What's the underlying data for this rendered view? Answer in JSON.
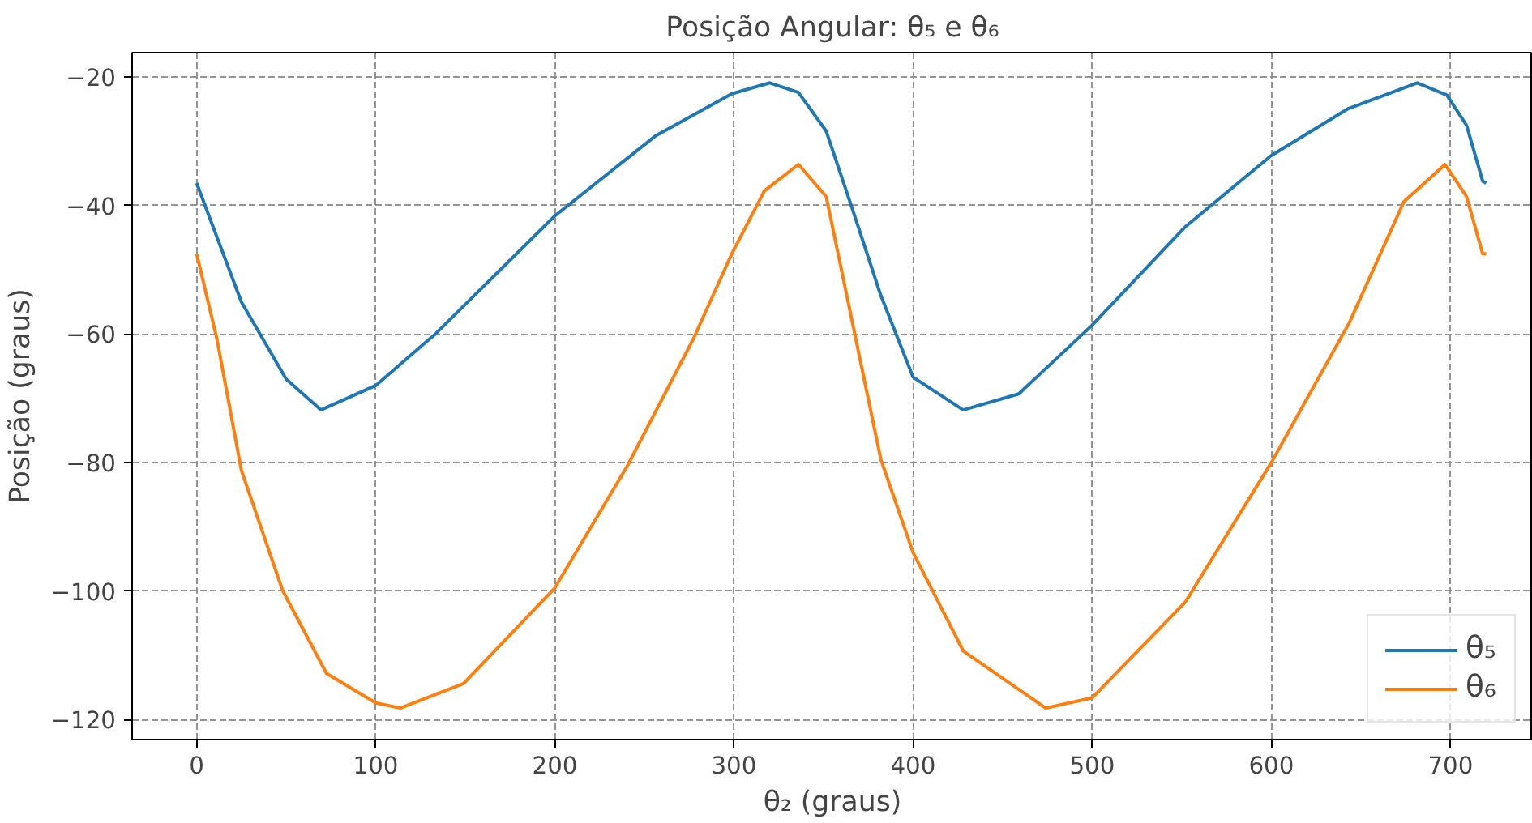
{
  "chart_data": {
    "type": "line",
    "title": "Posição Angular: θ₅ e θ₆",
    "xlabel": "θ₂ (graus)",
    "ylabel": "Posição (graus)",
    "xlim": [
      -36,
      746
    ],
    "ylim": [
      -123.1,
      -16.2
    ],
    "xticks": [
      0,
      100,
      200,
      300,
      400,
      500,
      600,
      700
    ],
    "yticks": [
      -120,
      -100,
      -80,
      -60,
      -40,
      -20
    ],
    "grid": true,
    "legend": "bottom right",
    "line_style": "solid",
    "marker": "none",
    "series": [
      {
        "name": "θ₅",
        "color": "#1f77b4",
        "x": [
          0,
          25,
          50,
          69.4,
          100,
          133.6,
          200,
          256,
          298.8,
          320,
          336,
          351.5,
          366.8,
          382,
          400,
          428,
          459,
          500,
          552,
          600,
          643,
          681.5,
          698,
          709,
          718,
          720
        ],
        "values": [
          -36.5,
          -55,
          -67,
          -71.8,
          -68.0,
          -59.9,
          -41.6,
          -29.2,
          -22.6,
          -20.9,
          -22.4,
          -28.4,
          -41.1,
          -54,
          -66.7,
          -71.8,
          -69.3,
          -58.6,
          -43.3,
          -32.2,
          -24.9,
          -20.9,
          -22.8,
          -27.5,
          -36.2,
          -36.5
        ]
      },
      {
        "name": "θ₆",
        "color": "#ff7f0e",
        "x": [
          0,
          11.3,
          25,
          48,
          72.5,
          100,
          113.8,
          149,
          200,
          240.7,
          277.4,
          298.8,
          317,
          336,
          351.5,
          366.8,
          382,
          400,
          428,
          474,
          500,
          552,
          600,
          643.6,
          674,
          697,
          709,
          718,
          720
        ],
        "values": [
          -47.5,
          -60.7,
          -81.2,
          -99.9,
          -112.8,
          -117.4,
          -118.2,
          -114.4,
          -99.5,
          -80.4,
          -60.7,
          -47.5,
          -37.7,
          -33.6,
          -38.6,
          -59.1,
          -79.5,
          -94.0,
          -109.3,
          -118.2,
          -116.6,
          -101.7,
          -80,
          -58.2,
          -39.4,
          -33.6,
          -38.6,
          -47.5,
          -47.5
        ]
      }
    ]
  }
}
